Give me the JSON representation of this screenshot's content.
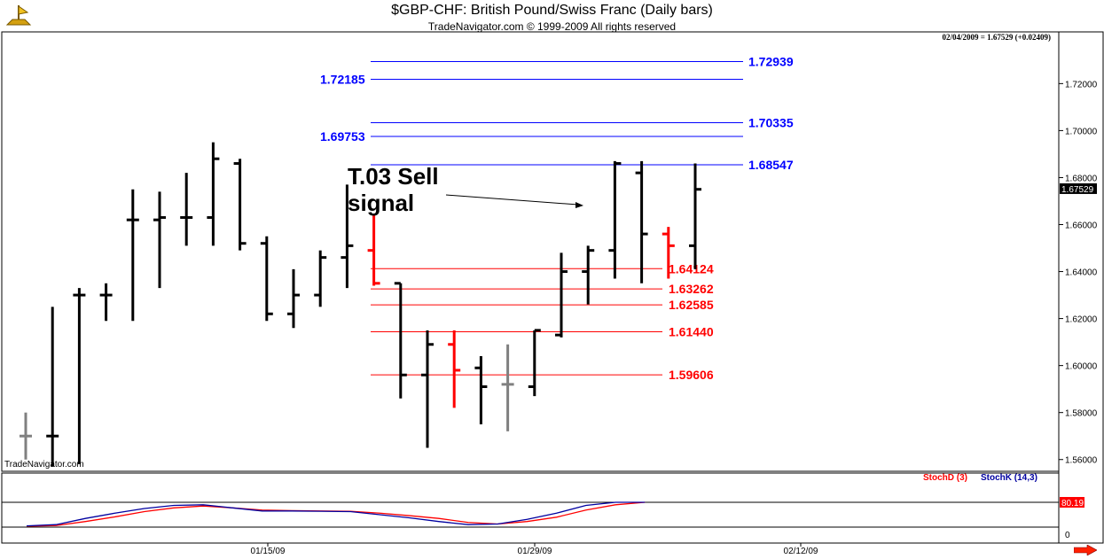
{
  "window": {
    "title": "$GBP-CHF:  British Pound/Swiss Franc  (Daily bars)",
    "subtitle": "TradeNavigator.com © 1999-2009 All rights reserved",
    "watermark": "TradeNavigator.com",
    "quote_text": "02/04/2009 = 1.67529 (+0.02409)",
    "current_price_label": "1.67529"
  },
  "annotation": {
    "line1": "T.03 Sell",
    "line2": "signal"
  },
  "colors": {
    "up_bar": "#000000",
    "down_bar": "#ff0000",
    "neutral_bar": "#808080",
    "resistance": "#0000ff",
    "support": "#ff0000",
    "stoch_d": "#ff0000",
    "stoch_k": "#0000a0"
  },
  "indicator": {
    "stoch_d_label": "StochD (3)",
    "stoch_k_label": "StochK (14,3)",
    "value_label": "80.19",
    "zero_label": "0"
  },
  "chart_data": {
    "type": "ohlc",
    "ylim": [
      1.555,
      1.742
    ],
    "yticks": [
      "1.56000",
      "1.58000",
      "1.60000",
      "1.62000",
      "1.64000",
      "1.66000",
      "1.68000",
      "1.70000",
      "1.72000"
    ],
    "xtick_labels": [
      "01/15/09",
      "01/29/09",
      "02/12/09"
    ],
    "bars": [
      {
        "o": 1.57,
        "h": 1.58,
        "l": 1.56,
        "c": 1.57,
        "color": "neutral"
      },
      {
        "o": 1.57,
        "h": 1.625,
        "l": 1.557,
        "c": 1.57,
        "color": "up"
      },
      {
        "o": 1.63,
        "h": 1.633,
        "l": 1.558,
        "c": 1.63,
        "color": "up"
      },
      {
        "o": 1.63,
        "h": 1.635,
        "l": 1.619,
        "c": 1.63,
        "color": "up"
      },
      {
        "o": 1.662,
        "h": 1.675,
        "l": 1.619,
        "c": 1.662,
        "color": "up"
      },
      {
        "o": 1.662,
        "h": 1.674,
        "l": 1.633,
        "c": 1.663,
        "color": "up"
      },
      {
        "o": 1.663,
        "h": 1.682,
        "l": 1.651,
        "c": 1.663,
        "color": "up"
      },
      {
        "o": 1.663,
        "h": 1.695,
        "l": 1.651,
        "c": 1.688,
        "color": "up"
      },
      {
        "o": 1.686,
        "h": 1.688,
        "l": 1.649,
        "c": 1.652,
        "color": "up"
      },
      {
        "o": 1.652,
        "h": 1.655,
        "l": 1.619,
        "c": 1.622,
        "color": "up"
      },
      {
        "o": 1.622,
        "h": 1.641,
        "l": 1.616,
        "c": 1.63,
        "color": "up"
      },
      {
        "o": 1.63,
        "h": 1.649,
        "l": 1.625,
        "c": 1.646,
        "color": "up"
      },
      {
        "o": 1.646,
        "h": 1.677,
        "l": 1.633,
        "c": 1.651,
        "color": "up"
      },
      {
        "o": 1.649,
        "h": 1.664,
        "l": 1.634,
        "c": 1.635,
        "color": "down"
      },
      {
        "o": 1.635,
        "h": 1.635,
        "l": 1.586,
        "c": 1.596,
        "color": "up"
      },
      {
        "o": 1.596,
        "h": 1.615,
        "l": 1.565,
        "c": 1.609,
        "color": "up"
      },
      {
        "o": 1.609,
        "h": 1.615,
        "l": 1.582,
        "c": 1.598,
        "color": "down"
      },
      {
        "o": 1.599,
        "h": 1.604,
        "l": 1.575,
        "c": 1.591,
        "color": "up"
      },
      {
        "o": 1.592,
        "h": 1.609,
        "l": 1.572,
        "c": 1.592,
        "color": "neutral"
      },
      {
        "o": 1.591,
        "h": 1.615,
        "l": 1.587,
        "c": 1.615,
        "color": "up"
      },
      {
        "o": 1.613,
        "h": 1.648,
        "l": 1.612,
        "c": 1.64,
        "color": "up"
      },
      {
        "o": 1.64,
        "h": 1.651,
        "l": 1.626,
        "c": 1.649,
        "color": "up"
      },
      {
        "o": 1.649,
        "h": 1.687,
        "l": 1.637,
        "c": 1.686,
        "color": "up"
      },
      {
        "o": 1.682,
        "h": 1.687,
        "l": 1.635,
        "c": 1.656,
        "color": "up"
      },
      {
        "o": 1.656,
        "h": 1.659,
        "l": 1.637,
        "c": 1.651,
        "color": "down"
      },
      {
        "o": 1.651,
        "h": 1.686,
        "l": 1.641,
        "c": 1.675,
        "color": "up"
      }
    ],
    "levels": [
      {
        "value": 1.72939,
        "label": "1.72939",
        "color": "resistance",
        "label_side": "right"
      },
      {
        "value": 1.72185,
        "label": "1.72185",
        "color": "resistance",
        "label_side": "left"
      },
      {
        "value": 1.70335,
        "label": "1.70335",
        "color": "resistance",
        "label_side": "right"
      },
      {
        "value": 1.69753,
        "label": "1.69753",
        "color": "resistance",
        "label_side": "left"
      },
      {
        "value": 1.68547,
        "label": "1.68547",
        "color": "resistance",
        "label_side": "right"
      },
      {
        "value": 1.64124,
        "label": "1.64124",
        "color": "support",
        "label_side": "right"
      },
      {
        "value": 1.63262,
        "label": "1.63262",
        "color": "support",
        "label_side": "right"
      },
      {
        "value": 1.62585,
        "label": "1.62585",
        "color": "support",
        "label_side": "right"
      },
      {
        "value": 1.6144,
        "label": "1.61440",
        "color": "support",
        "label_side": "right"
      },
      {
        "value": 1.59606,
        "label": "1.59606",
        "color": "support",
        "label_side": "right"
      }
    ],
    "stoch_ylim": [
      0,
      100
    ],
    "stoch_k": [
      4,
      8,
      28,
      45,
      60,
      70,
      72,
      62,
      52,
      52,
      51,
      50,
      40,
      30,
      18,
      8,
      10,
      25,
      45,
      70,
      80,
      80
    ],
    "stoch_d": [
      3,
      5,
      18,
      33,
      50,
      62,
      68,
      62,
      55,
      53,
      52,
      51,
      45,
      37,
      28,
      15,
      10,
      18,
      32,
      55,
      72,
      80
    ]
  }
}
